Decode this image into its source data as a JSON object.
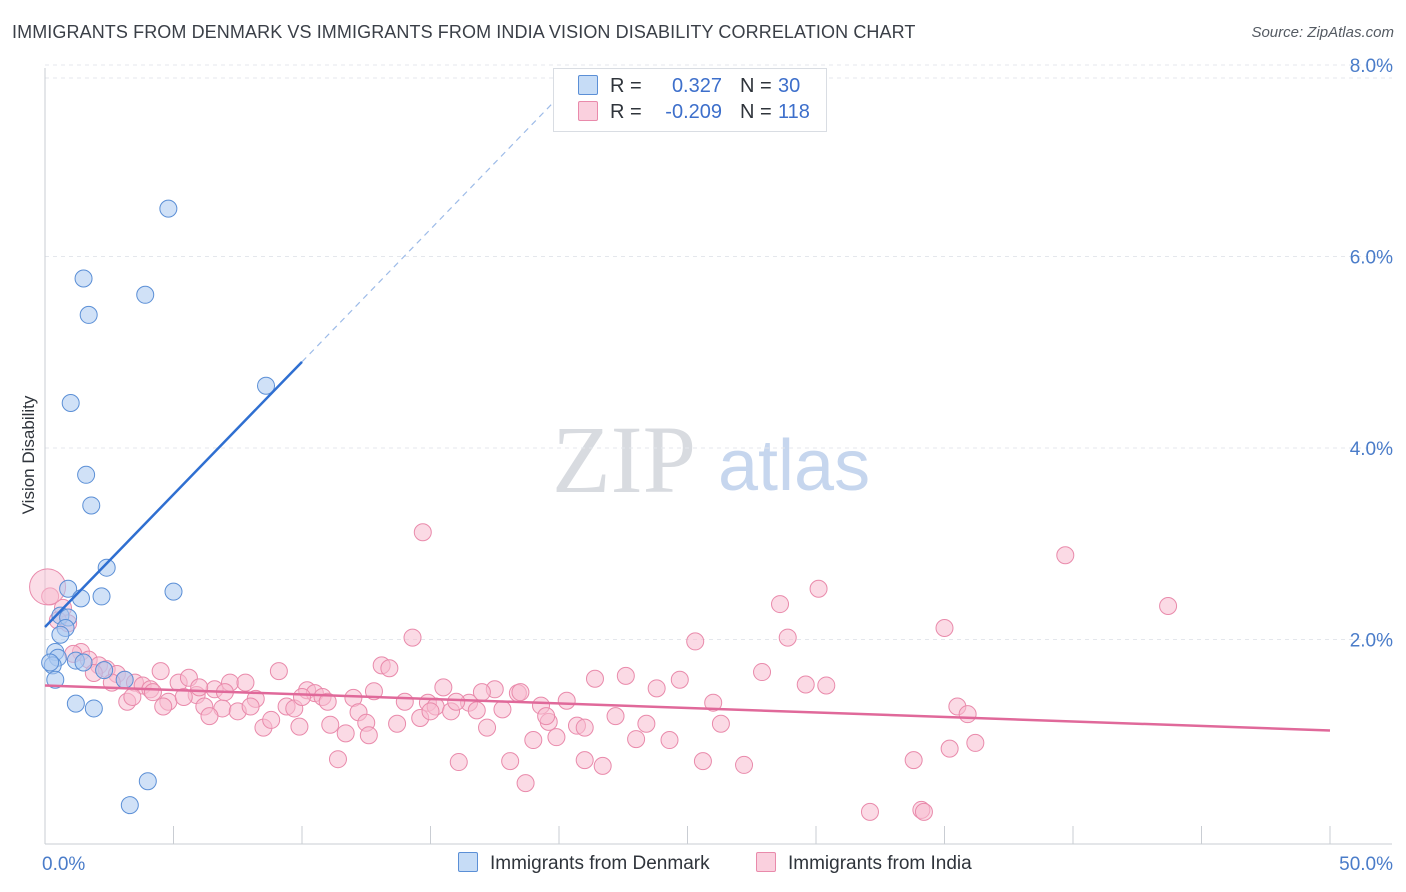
{
  "header": {
    "title": "IMMIGRANTS FROM DENMARK VS IMMIGRANTS FROM INDIA VISION DISABILITY CORRELATION CHART",
    "source": "Source: ZipAtlas.com"
  },
  "watermark": {
    "zip": "ZIP",
    "atlas": "atlas"
  },
  "legend": {
    "rows": [
      {
        "r_label": "R =",
        "r_value": "0.327",
        "n_label": "N =",
        "n_value": "30",
        "color": "#a9c8f0",
        "border": "#5b8fd6"
      },
      {
        "r_label": "R =",
        "r_value": "-0.209",
        "n_label": "N =",
        "n_value": "118",
        "color": "#f7bcd0",
        "border": "#e98aab"
      }
    ]
  },
  "bottom_legend": {
    "denmark": "Immigrants from Denmark",
    "india": "Immigrants from India"
  },
  "chart_data": {
    "type": "scatter",
    "title": "IMMIGRANTS FROM DENMARK VS IMMIGRANTS FROM INDIA VISION DISABILITY CORRELATION CHART",
    "xlabel": "",
    "ylabel": "Vision Disability",
    "xlim": [
      0,
      50
    ],
    "ylim": [
      0,
      8.0
    ],
    "x_ticks": [
      {
        "value": 0,
        "label": "0.0%"
      },
      {
        "value": 50,
        "label": "50.0%"
      }
    ],
    "y_ticks": [
      {
        "value": 2,
        "label": "2.0%"
      },
      {
        "value": 4,
        "label": "4.0%"
      },
      {
        "value": 6,
        "label": "6.0%"
      },
      {
        "value": 8,
        "label": "8.0%"
      }
    ],
    "grid": true,
    "legend_position": "top-center",
    "series": [
      {
        "name": "Immigrants from Denmark",
        "color": "#a9c8f0",
        "stroke": "#5b8fd6",
        "points": [
          [
            4.8,
            6.5
          ],
          [
            1.5,
            5.77
          ],
          [
            3.9,
            5.6
          ],
          [
            1.7,
            5.39
          ],
          [
            1.0,
            4.47
          ],
          [
            8.6,
            4.65
          ],
          [
            1.6,
            3.72
          ],
          [
            1.8,
            3.4
          ],
          [
            2.4,
            2.75
          ],
          [
            0.9,
            2.53
          ],
          [
            5.0,
            2.5
          ],
          [
            1.4,
            2.43
          ],
          [
            2.2,
            2.45
          ],
          [
            0.6,
            2.25
          ],
          [
            0.9,
            2.23
          ],
          [
            0.8,
            2.12
          ],
          [
            0.6,
            2.05
          ],
          [
            0.4,
            1.87
          ],
          [
            0.5,
            1.81
          ],
          [
            0.3,
            1.73
          ],
          [
            1.2,
            1.78
          ],
          [
            1.5,
            1.76
          ],
          [
            0.4,
            1.58
          ],
          [
            2.3,
            1.68
          ],
          [
            3.1,
            1.58
          ],
          [
            1.2,
            1.33
          ],
          [
            1.9,
            1.28
          ],
          [
            4.0,
            0.52
          ],
          [
            3.3,
            0.27
          ],
          [
            0.2,
            1.76
          ]
        ],
        "trend": {
          "x0": 0,
          "y0": 2.13,
          "x1": 10,
          "y1": 4.9,
          "dash_to_x": 20
        }
      },
      {
        "name": "Immigrants from India",
        "color": "#f7bcd0",
        "stroke": "#e98aab",
        "points": [
          [
            0.2,
            2.45
          ],
          [
            0.7,
            2.33
          ],
          [
            0.9,
            2.17
          ],
          [
            1.4,
            1.87
          ],
          [
            1.7,
            1.79
          ],
          [
            2.1,
            1.73
          ],
          [
            2.4,
            1.69
          ],
          [
            2.8,
            1.64
          ],
          [
            3.1,
            1.58
          ],
          [
            3.5,
            1.55
          ],
          [
            3.8,
            1.52
          ],
          [
            4.1,
            1.48
          ],
          [
            4.5,
            1.67
          ],
          [
            4.8,
            1.35
          ],
          [
            5.2,
            1.55
          ],
          [
            5.6,
            1.6
          ],
          [
            5.9,
            1.42
          ],
          [
            6.2,
            1.3
          ],
          [
            6.6,
            1.48
          ],
          [
            6.9,
            1.28
          ],
          [
            7.2,
            1.55
          ],
          [
            7.5,
            1.25
          ],
          [
            7.8,
            1.55
          ],
          [
            8.2,
            1.38
          ],
          [
            8.5,
            1.08
          ],
          [
            8.8,
            1.16
          ],
          [
            9.1,
            1.67
          ],
          [
            9.4,
            1.3
          ],
          [
            9.7,
            1.28
          ],
          [
            9.9,
            1.09
          ],
          [
            10.2,
            1.47
          ],
          [
            10.5,
            1.44
          ],
          [
            10.8,
            1.4
          ],
          [
            11.1,
            1.11
          ],
          [
            11.4,
            0.75
          ],
          [
            11.7,
            1.02
          ],
          [
            12.0,
            1.39
          ],
          [
            12.2,
            1.24
          ],
          [
            12.5,
            1.13
          ],
          [
            12.8,
            1.46
          ],
          [
            13.1,
            1.73
          ],
          [
            13.4,
            1.7
          ],
          [
            13.7,
            1.12
          ],
          [
            14.0,
            1.35
          ],
          [
            14.3,
            2.02
          ],
          [
            14.6,
            1.18
          ],
          [
            14.9,
            1.34
          ],
          [
            15.2,
            1.3
          ],
          [
            15.5,
            1.5
          ],
          [
            15.8,
            1.25
          ],
          [
            16.1,
            0.72
          ],
          [
            16.5,
            1.34
          ],
          [
            16.8,
            1.26
          ],
          [
            17.2,
            1.08
          ],
          [
            17.5,
            1.48
          ],
          [
            17.8,
            1.27
          ],
          [
            18.1,
            0.73
          ],
          [
            18.4,
            1.44
          ],
          [
            18.7,
            0.5
          ],
          [
            19.0,
            0.95
          ],
          [
            19.3,
            1.31
          ],
          [
            19.6,
            1.14
          ],
          [
            19.9,
            0.98
          ],
          [
            20.3,
            1.36
          ],
          [
            20.7,
            1.1
          ],
          [
            21.0,
            0.74
          ],
          [
            21.4,
            1.59
          ],
          [
            21.7,
            0.68
          ],
          [
            22.2,
            1.2
          ],
          [
            22.6,
            1.62
          ],
          [
            23.0,
            0.96
          ],
          [
            23.4,
            1.12
          ],
          [
            23.8,
            1.49
          ],
          [
            24.3,
            0.95
          ],
          [
            24.7,
            1.58
          ],
          [
            25.3,
            1.98
          ],
          [
            25.6,
            0.73
          ],
          [
            26.0,
            1.34
          ],
          [
            26.3,
            1.12
          ],
          [
            27.2,
            0.69
          ],
          [
            27.9,
            1.66
          ],
          [
            28.6,
            2.37
          ],
          [
            28.9,
            2.02
          ],
          [
            29.6,
            1.53
          ],
          [
            30.1,
            2.53
          ],
          [
            30.4,
            1.52
          ],
          [
            32.1,
            0.2
          ],
          [
            33.8,
            0.74
          ],
          [
            34.1,
            0.22
          ],
          [
            34.2,
            0.2
          ],
          [
            35.0,
            2.12
          ],
          [
            35.2,
            0.86
          ],
          [
            35.5,
            1.3
          ],
          [
            35.9,
            1.22
          ],
          [
            36.2,
            0.92
          ],
          [
            39.7,
            2.88
          ],
          [
            43.7,
            2.35
          ],
          [
            14.7,
            3.12
          ],
          [
            4.2,
            1.45
          ],
          [
            3.2,
            1.35
          ],
          [
            6.0,
            1.5
          ],
          [
            7.0,
            1.45
          ],
          [
            8.0,
            1.3
          ],
          [
            10.0,
            1.4
          ],
          [
            11.0,
            1.35
          ],
          [
            12.6,
            1.0
          ],
          [
            15.0,
            1.25
          ],
          [
            16.0,
            1.35
          ],
          [
            17.0,
            1.45
          ],
          [
            18.5,
            1.45
          ],
          [
            19.5,
            1.2
          ],
          [
            21.0,
            1.08
          ],
          [
            0.5,
            2.2
          ],
          [
            1.1,
            1.85
          ],
          [
            1.9,
            1.65
          ],
          [
            2.6,
            1.55
          ],
          [
            3.4,
            1.4
          ],
          [
            4.6,
            1.3
          ],
          [
            5.4,
            1.4
          ],
          [
            6.4,
            1.2
          ]
        ],
        "trend": {
          "x0": 0,
          "y0": 1.52,
          "x1": 50,
          "y1": 1.05
        }
      }
    ]
  }
}
